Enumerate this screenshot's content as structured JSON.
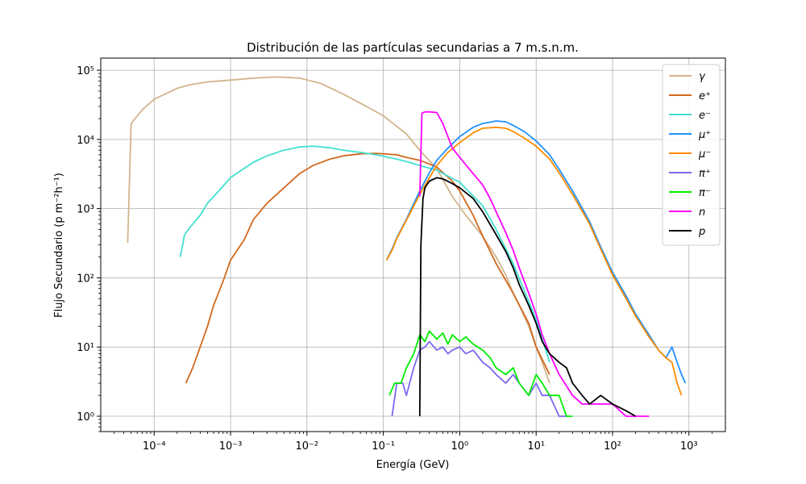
{
  "chart_data": {
    "type": "line",
    "title": "Distribución de las partículas secundarias a 7 m.s.n.m.",
    "xlabel": "Energía (GeV)",
    "ylabel": "Flujo Secundario (p m⁻²h⁻¹)",
    "x_scale": "log",
    "y_scale": "log",
    "xlim": [
      2e-05,
      3000
    ],
    "ylim": [
      0.6,
      150000
    ],
    "x_ticks": [
      "10⁻⁴",
      "10⁻³",
      "10⁻²",
      "10⁻¹",
      "10⁰",
      "10¹",
      "10²",
      "10³"
    ],
    "y_ticks": [
      "10⁰",
      "10¹",
      "10²",
      "10³",
      "10⁴",
      "10⁵"
    ],
    "grid": true,
    "legend_position": "top-right",
    "series": [
      {
        "name": "γ",
        "color": "#d2b48c",
        "x": [
          4.5e-05,
          5e-05,
          7e-05,
          0.0001,
          0.00015,
          0.0002,
          0.0003,
          0.0005,
          0.001,
          0.002,
          0.004,
          0.008,
          0.015,
          0.03,
          0.06,
          0.1,
          0.2,
          0.3,
          0.5,
          0.8,
          1.2,
          2,
          3,
          4,
          5,
          6,
          8,
          10,
          12,
          15
        ],
        "y": [
          320,
          17000,
          27000,
          38000,
          47000,
          55000,
          62000,
          68000,
          72000,
          77000,
          80000,
          77000,
          65000,
          45000,
          30000,
          22000,
          12000,
          7000,
          3800,
          1500,
          800,
          400,
          200,
          110,
          60,
          40,
          20,
          10,
          6,
          3
        ]
      },
      {
        "name": "e⁺",
        "color": "#d2691e",
        "x": [
          0.00026,
          0.00032,
          0.0004,
          0.0005,
          0.0006,
          0.0008,
          0.001,
          0.0015,
          0.002,
          0.003,
          0.005,
          0.008,
          0.012,
          0.02,
          0.03,
          0.05,
          0.08,
          0.1,
          0.15,
          0.2,
          0.3,
          0.5,
          0.8,
          1,
          1.5,
          2,
          3,
          5,
          8,
          10,
          15
        ],
        "y": [
          3,
          5,
          10,
          20,
          40,
          90,
          180,
          350,
          700,
          1200,
          2000,
          3200,
          4200,
          5200,
          5800,
          6200,
          6300,
          6200,
          6000,
          5500,
          5000,
          4000,
          2500,
          1800,
          800,
          400,
          160,
          60,
          22,
          10,
          4
        ]
      },
      {
        "name": "e⁻",
        "color": "#40e0d0",
        "x": [
          0.00022,
          0.00025,
          0.0003,
          0.0004,
          0.0005,
          0.0007,
          0.001,
          0.0015,
          0.002,
          0.003,
          0.005,
          0.008,
          0.012,
          0.02,
          0.03,
          0.05,
          0.08,
          0.1,
          0.15,
          0.2,
          0.3,
          0.5,
          1,
          2,
          3,
          5,
          10,
          15
        ],
        "y": [
          200,
          420,
          550,
          800,
          1200,
          1800,
          2800,
          3800,
          4700,
          5800,
          7000,
          7800,
          8000,
          7600,
          7000,
          6500,
          6000,
          5700,
          5200,
          4800,
          4200,
          3600,
          2400,
          1100,
          500,
          160,
          25,
          6
        ]
      },
      {
        "name": "μ⁺",
        "color": "#1e90ff",
        "x": [
          0.11,
          0.13,
          0.15,
          0.2,
          0.3,
          0.4,
          0.5,
          0.7,
          1,
          1.5,
          2,
          3,
          4,
          5,
          7,
          10,
          15,
          20,
          30,
          50,
          70,
          100,
          150,
          200,
          300,
          400,
          500,
          600,
          700,
          800,
          900
        ],
        "y": [
          180,
          260,
          380,
          700,
          1800,
          3300,
          5000,
          7500,
          11000,
          15000,
          17000,
          18500,
          18000,
          16000,
          13000,
          9500,
          6000,
          3700,
          1800,
          650,
          280,
          120,
          55,
          30,
          15,
          9,
          7,
          10,
          6,
          4,
          3
        ]
      },
      {
        "name": "μ⁻",
        "color": "#ff8c00",
        "x": [
          0.11,
          0.13,
          0.15,
          0.2,
          0.3,
          0.4,
          0.5,
          0.7,
          1,
          1.5,
          2,
          3,
          4,
          5,
          7,
          10,
          15,
          20,
          30,
          50,
          70,
          100,
          150,
          200,
          300,
          400,
          500,
          600,
          700,
          800
        ],
        "y": [
          180,
          250,
          370,
          680,
          1600,
          2800,
          4200,
          6500,
          9000,
          12500,
          14500,
          15000,
          14500,
          13000,
          10500,
          8000,
          5200,
          3300,
          1600,
          600,
          260,
          110,
          50,
          28,
          14,
          9,
          7,
          6,
          3,
          2
        ]
      },
      {
        "name": "π⁺",
        "color": "#7b68ee",
        "x": [
          0.13,
          0.15,
          0.18,
          0.2,
          0.25,
          0.3,
          0.35,
          0.4,
          0.5,
          0.6,
          0.7,
          0.8,
          1,
          1.2,
          1.5,
          2,
          2.5,
          3,
          4,
          5,
          6,
          8,
          10,
          12,
          15,
          20,
          25
        ],
        "y": [
          1,
          3,
          3,
          2,
          5,
          9,
          10,
          12,
          9,
          10,
          8,
          9,
          10,
          8,
          9,
          6,
          5,
          4,
          3,
          4,
          3,
          2,
          3,
          2,
          2,
          1,
          1
        ]
      },
      {
        "name": "π⁻",
        "color": "#00ee00",
        "x": [
          0.12,
          0.14,
          0.17,
          0.2,
          0.25,
          0.3,
          0.35,
          0.4,
          0.5,
          0.6,
          0.7,
          0.8,
          1,
          1.2,
          1.5,
          2,
          2.5,
          3,
          4,
          5,
          6,
          8,
          10,
          12,
          15,
          20,
          25,
          30
        ],
        "y": [
          2,
          3,
          3,
          5,
          8,
          15,
          12,
          17,
          13,
          16,
          11,
          15,
          12,
          14,
          11,
          9,
          7,
          5,
          4,
          5,
          3,
          2,
          4,
          3,
          2,
          2,
          1,
          1
        ]
      },
      {
        "name": "n",
        "color": "#ff00ff",
        "x": [
          0.3,
          0.32,
          0.35,
          0.4,
          0.5,
          0.6,
          0.7,
          0.8,
          1,
          1.2,
          1.5,
          2,
          2.5,
          3,
          4,
          5,
          6,
          8,
          10,
          12,
          15,
          20,
          30,
          40,
          50,
          70,
          100,
          150,
          200,
          300
        ],
        "y": [
          1500,
          24000,
          25000,
          25000,
          24500,
          17000,
          11000,
          7500,
          5500,
          4300,
          3200,
          2200,
          1400,
          900,
          450,
          250,
          140,
          60,
          30,
          15,
          8,
          4,
          2,
          1.5,
          1.5,
          1.5,
          1.5,
          1,
          1,
          1
        ]
      },
      {
        "name": "p",
        "color": "#000000",
        "x": [
          0.3,
          0.31,
          0.33,
          0.35,
          0.4,
          0.5,
          0.6,
          0.8,
          1,
          1.5,
          2,
          3,
          4,
          5,
          6,
          8,
          10,
          12,
          15,
          20,
          25,
          30,
          40,
          50,
          70,
          100,
          150,
          200
        ],
        "y": [
          1,
          300,
          1400,
          2000,
          2500,
          2800,
          2700,
          2300,
          2000,
          1400,
          900,
          420,
          240,
          140,
          80,
          40,
          22,
          12,
          8,
          6,
          5,
          3,
          2,
          1.5,
          2,
          1.5,
          1.2,
          1
        ]
      }
    ]
  }
}
